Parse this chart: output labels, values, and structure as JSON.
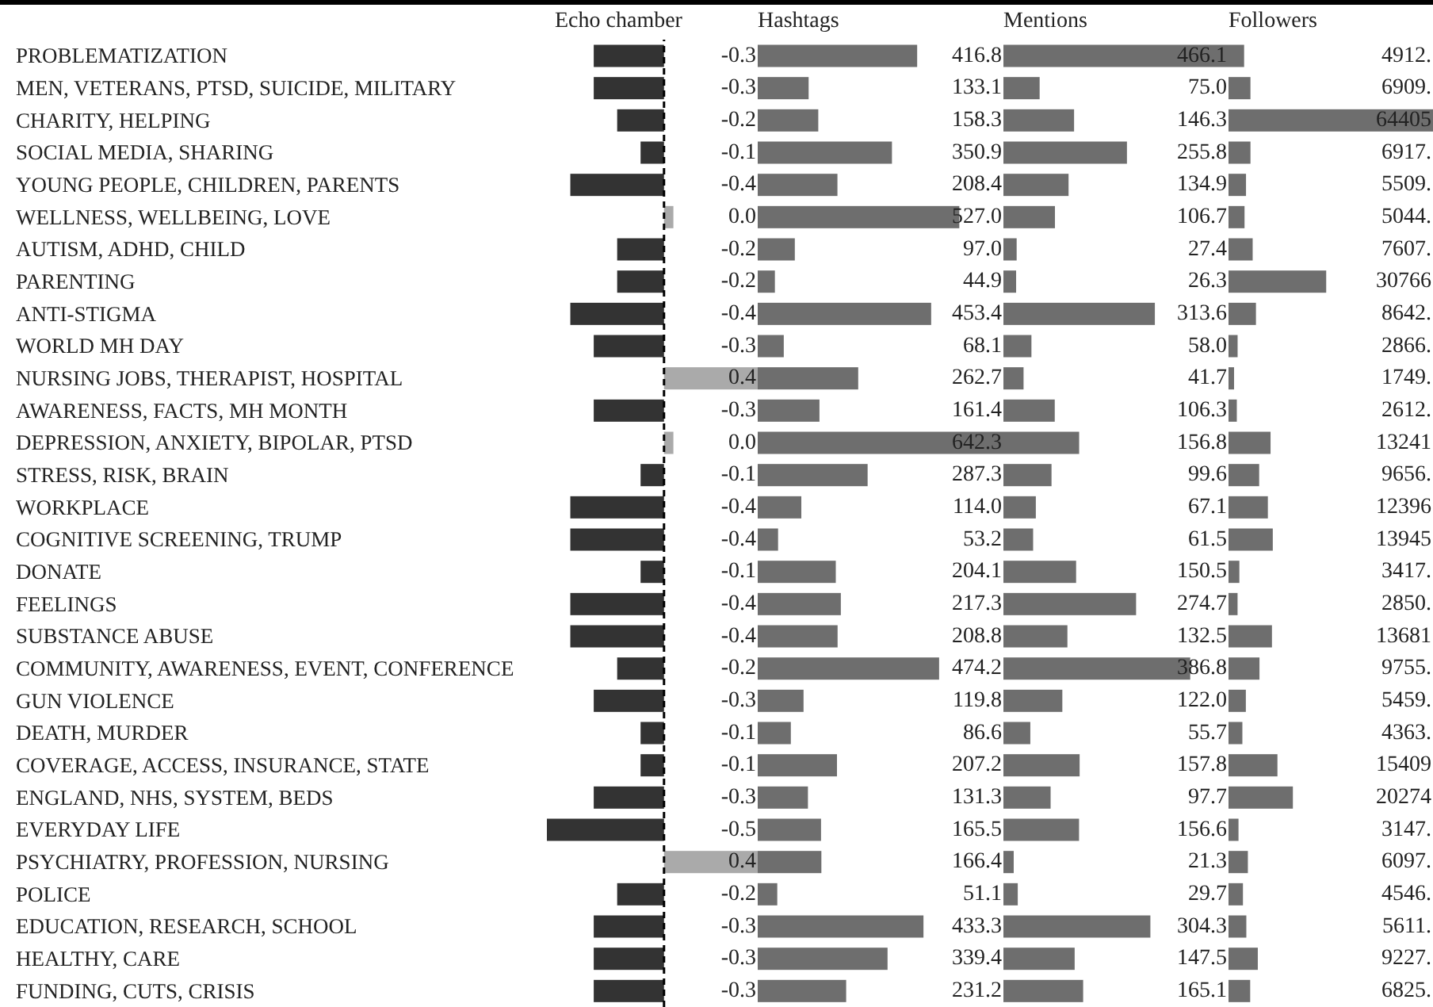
{
  "chart_data": [
    {
      "type": "bar",
      "orientation": "horizontal",
      "title": "Echo chamber",
      "tick_labels": "y",
      "categories": [
        "PROBLEMATIZATION",
        "MEN, VETERANS, PTSD, SUICIDE, MILITARY",
        "CHARITY, HELPING",
        "SOCIAL MEDIA, SHARING",
        "YOUNG PEOPLE, CHILDREN, PARENTS",
        "WELLNESS, WELLBEING, LOVE",
        "AUTISM, ADHD, CHILD",
        "PARENTING",
        "ANTI-STIGMA",
        "WORLD MH DAY",
        "NURSING JOBS, THERAPIST, HOSPITAL",
        "AWARENESS, FACTS, MH MONTH",
        "DEPRESSION, ANXIETY, BIPOLAR, PTSD",
        "STRESS, RISK, BRAIN",
        "WORKPLACE",
        "COGNITIVE SCREENING, TRUMP",
        "DONATE",
        "FEELINGS",
        "SUBSTANCE ABUSE",
        "COMMUNITY, AWARENESS, EVENT, CONFERENCE",
        "GUN VIOLENCE",
        "DEATH, MURDER",
        "COVERAGE, ACCESS, INSURANCE, STATE",
        "ENGLAND, NHS, SYSTEM, BEDS",
        "EVERYDAY LIFE",
        "PSYCHIATRY, PROFESSION, NURSING",
        "POLICE",
        "EDUCATION, RESEARCH, SCHOOL",
        "HEALTHY, CARE",
        "FUNDING, CUTS, CRISIS"
      ],
      "values": [
        -0.3,
        -0.3,
        -0.2,
        -0.1,
        -0.4,
        0.04,
        -0.2,
        -0.2,
        -0.4,
        -0.3,
        0.4,
        -0.3,
        0.04,
        -0.1,
        -0.4,
        -0.4,
        -0.1,
        -0.4,
        -0.4,
        -0.2,
        -0.3,
        -0.1,
        -0.1,
        -0.3,
        -0.5,
        0.4,
        -0.2,
        -0.3,
        -0.3,
        -0.3
      ],
      "value_labels": [
        "-0.3",
        "-0.3",
        "-0.2",
        "-0.1",
        "-0.4",
        "0.0",
        "-0.2",
        "-0.2",
        "-0.4",
        "-0.3",
        "0.4",
        "-0.3",
        "0.0",
        "-0.1",
        "-0.4",
        "-0.4",
        "-0.1",
        "-0.4",
        "-0.4",
        "-0.2",
        "-0.3",
        "-0.1",
        "-0.1",
        "-0.3",
        "-0.5",
        "0.4",
        "-0.2",
        "-0.3",
        "-0.3",
        "-0.3"
      ],
      "colors": [
        "#333333",
        "#333333",
        "#333333",
        "#333333",
        "#333333",
        "#aaaaaa",
        "#333333",
        "#333333",
        "#333333",
        "#333333",
        "#aaaaaa",
        "#333333",
        "#aaaaaa",
        "#333333",
        "#333333",
        "#333333",
        "#333333",
        "#333333",
        "#333333",
        "#333333",
        "#333333",
        "#333333",
        "#333333",
        "#333333",
        "#333333",
        "#aaaaaa",
        "#333333",
        "#333333",
        "#333333",
        "#333333"
      ],
      "ref_lines": [
        {
          "axis": "x",
          "value": 0,
          "line_style": "dashed",
          "color": "#000000"
        }
      ]
    },
    {
      "type": "bar",
      "orientation": "horizontal",
      "title": "Hashtags",
      "tick_labels": false,
      "color": "#6e6e6e",
      "categories": [
        null,
        null,
        null,
        null,
        null,
        null,
        null,
        null,
        null,
        null,
        null,
        null,
        null,
        null,
        null,
        null,
        null,
        null,
        null,
        null,
        null,
        null,
        null,
        null,
        null,
        null,
        null,
        null,
        null,
        null
      ],
      "values": [
        416.8,
        133.1,
        158.3,
        350.9,
        208.4,
        527.0,
        97.0,
        44.9,
        453.4,
        68.1,
        262.7,
        161.4,
        642.3,
        287.3,
        114.0,
        53.2,
        204.1,
        217.3,
        208.8,
        474.2,
        119.8,
        86.6,
        207.2,
        131.3,
        165.5,
        166.4,
        51.1,
        433.3,
        339.4,
        231.2
      ],
      "value_labels": [
        "416.8",
        "133.1",
        "158.3",
        "350.9",
        "208.4",
        "527.0",
        "97.0",
        "44.9",
        "453.4",
        "68.1",
        "262.7",
        "161.4",
        "642.3",
        "287.3",
        "114.0",
        "53.2",
        "204.1",
        "217.3",
        "208.8",
        "474.2",
        "119.8",
        "86.6",
        "207.2",
        "131.3",
        "165.5",
        "166.4",
        "51.1",
        "433.3",
        "339.4",
        "231.2"
      ]
    },
    {
      "type": "bar",
      "orientation": "horizontal",
      "title": "Mentions",
      "tick_labels": false,
      "color": "#6e6e6e",
      "categories": [
        null,
        null,
        null,
        null,
        null,
        null,
        null,
        null,
        null,
        null,
        null,
        null,
        null,
        null,
        null,
        null,
        null,
        null,
        null,
        null,
        null,
        null,
        null,
        null,
        null,
        null,
        null,
        null,
        null,
        null
      ],
      "values": [
        466.1,
        75.0,
        146.3,
        255.8,
        134.9,
        106.7,
        27.4,
        26.3,
        313.6,
        58.0,
        41.7,
        106.3,
        156.8,
        99.6,
        67.1,
        61.5,
        150.5,
        274.7,
        132.5,
        386.8,
        122.0,
        55.7,
        157.8,
        97.7,
        156.6,
        21.3,
        29.7,
        304.3,
        147.5,
        165.1
      ],
      "value_labels": [
        "466.1",
        "75.0",
        "146.3",
        "255.8",
        "134.9",
        "106.7",
        "27.4",
        "26.3",
        "313.6",
        "58.0",
        "41.7",
        "106.3",
        "156.8",
        "99.6",
        "67.1",
        "61.5",
        "150.5",
        "274.7",
        "132.5",
        "386.8",
        "122.0",
        "55.7",
        "157.8",
        "97.7",
        "156.6",
        "21.3",
        "29.7",
        "304.3",
        "147.5",
        "165.1"
      ]
    },
    {
      "type": "bar",
      "orientation": "horizontal",
      "title": "Followers",
      "tick_labels": false,
      "color": "#6e6e6e",
      "categories": [
        null,
        null,
        null,
        null,
        null,
        null,
        null,
        null,
        null,
        null,
        null,
        null,
        null,
        null,
        null,
        null,
        null,
        null,
        null,
        null,
        null,
        null,
        null,
        null,
        null,
        null,
        null,
        null,
        null,
        null
      ],
      "values": [
        4912,
        6909,
        64405,
        6917,
        5509,
        5044,
        7607,
        30766,
        8642,
        2866,
        1749,
        2612,
        13241,
        9656,
        12396,
        13945,
        3417,
        2850,
        13681,
        9755,
        5459,
        4363,
        15409,
        20274,
        3147,
        6097,
        4546,
        5611,
        9227,
        6825
      ],
      "value_labels": [
        "4912.",
        "6909.",
        "64405",
        "6917.",
        "5509.",
        "5044.",
        "7607.",
        "30766",
        "8642.",
        "2866.",
        "1749.",
        "2612.",
        "13241",
        "9656.",
        "12396",
        "13945",
        "3417.",
        "2850.",
        "13681",
        "9755.",
        "5459.",
        "4363.",
        "15409",
        "20274",
        "3147.",
        "6097.",
        "4546.",
        "5611.",
        "9227.",
        "6825."
      ]
    }
  ]
}
